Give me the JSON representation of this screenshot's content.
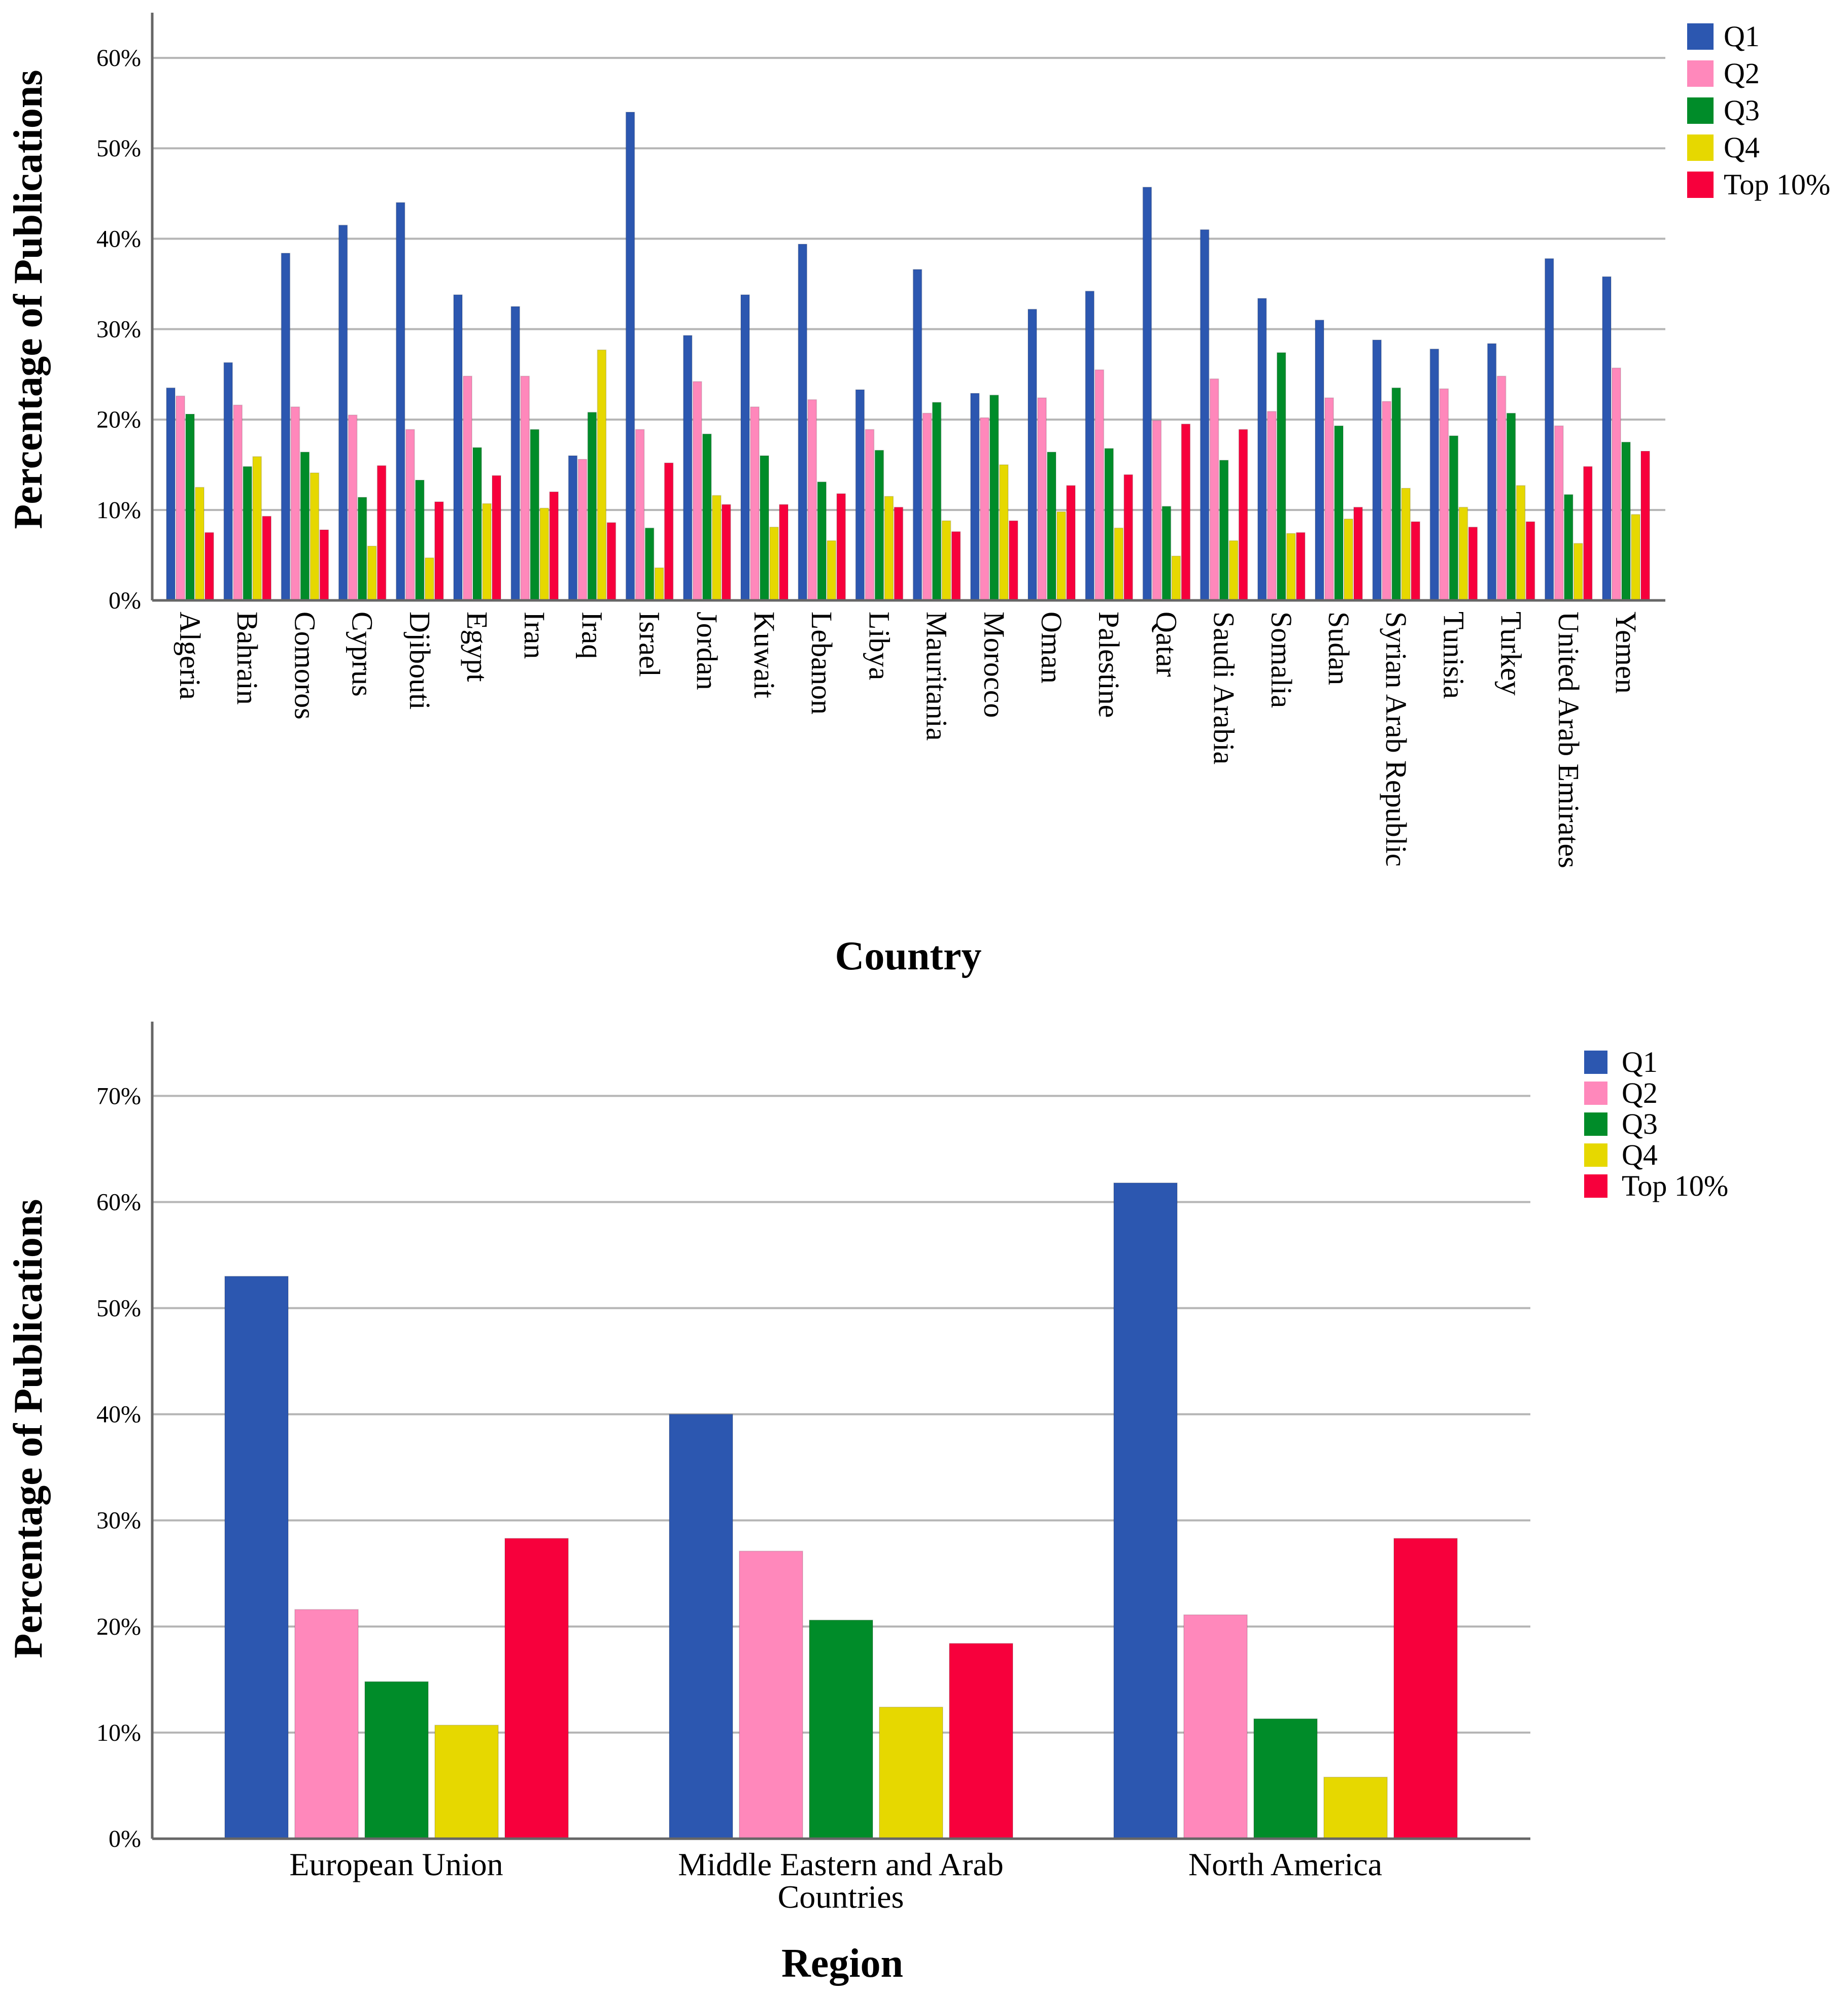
{
  "chart_data": [
    {
      "type": "bar",
      "title": "",
      "xlabel": "Country",
      "ylabel": "Percentage of Publications",
      "ylim": [
        0,
        65
      ],
      "yticks": [
        "0%",
        "10%",
        "20%",
        "30%",
        "40%",
        "50%",
        "60%"
      ],
      "legend": [
        "Q1",
        "Q2",
        "Q3",
        "Q4",
        "Top 10%"
      ],
      "legend_position": "top-right",
      "colors": [
        "#2c57b0",
        "#ff88bb",
        "#008c29",
        "#e6d800",
        "#f7003c"
      ],
      "categories": [
        "Algeria",
        "Bahrain",
        "Comoros",
        "Cyprus",
        "Djibouti",
        "Egypt",
        "Iran",
        "Iraq",
        "Israel",
        "Jordan",
        "Kuwait",
        "Lebanon",
        "Libya",
        "Mauritania",
        "Morocco",
        "Oman",
        "Palestine",
        "Qatar",
        "Saudi Arabia",
        "Somalia",
        "Sudan",
        "Syrian Arab Republic",
        "Tunisia",
        "Turkey",
        "United Arab Emirates",
        "Yemen"
      ],
      "series": [
        {
          "name": "Q1",
          "values": [
            23.5,
            26.3,
            38.4,
            41.5,
            44.0,
            33.8,
            32.5,
            16.0,
            54.0,
            29.3,
            33.8,
            39.4,
            23.3,
            36.6,
            22.9,
            32.2,
            34.2,
            45.7,
            41.0,
            33.4,
            31.0,
            28.8,
            27.8,
            28.4,
            37.8,
            35.8
          ]
        },
        {
          "name": "Q2",
          "values": [
            22.6,
            21.6,
            21.4,
            20.5,
            18.9,
            24.8,
            24.8,
            15.6,
            18.9,
            24.2,
            21.4,
            22.2,
            18.9,
            20.7,
            20.2,
            22.4,
            25.5,
            19.9,
            24.5,
            20.9,
            22.4,
            22.0,
            23.4,
            24.8,
            19.3,
            25.7
          ]
        },
        {
          "name": "Q3",
          "values": [
            20.6,
            14.8,
            16.4,
            11.4,
            13.3,
            16.9,
            18.9,
            20.8,
            8.0,
            18.4,
            16.0,
            13.1,
            16.6,
            21.9,
            22.7,
            16.4,
            16.8,
            10.4,
            15.5,
            27.4,
            19.3,
            23.5,
            18.2,
            20.7,
            11.7,
            17.5
          ]
        },
        {
          "name": "Q4",
          "values": [
            12.5,
            15.9,
            14.1,
            6.0,
            4.7,
            10.7,
            10.2,
            27.7,
            3.6,
            11.6,
            8.1,
            6.6,
            11.5,
            8.8,
            15.0,
            9.8,
            8.0,
            4.9,
            6.6,
            7.4,
            9.0,
            12.4,
            10.3,
            12.7,
            6.3,
            9.5
          ]
        },
        {
          "name": "Top 10%",
          "values": [
            7.5,
            9.3,
            7.8,
            14.9,
            10.9,
            13.8,
            12.0,
            8.6,
            15.2,
            10.6,
            10.6,
            11.8,
            10.3,
            7.6,
            8.8,
            12.7,
            13.9,
            19.5,
            18.9,
            7.5,
            10.3,
            8.7,
            8.1,
            8.7,
            14.8,
            16.5
          ]
        }
      ]
    },
    {
      "type": "bar",
      "title": "",
      "xlabel": "Region",
      "ylabel": "Percentage of Publications",
      "ylim": [
        0,
        77
      ],
      "yticks": [
        "0%",
        "10%",
        "20%",
        "30%",
        "40%",
        "50%",
        "60%",
        "70%"
      ],
      "legend": [
        "Q1",
        "Q2",
        "Q3",
        "Q4",
        "Top 10%"
      ],
      "legend_position": "top-right",
      "colors": [
        "#2c57b0",
        "#ff88bb",
        "#008c29",
        "#e6d800",
        "#f7003c"
      ],
      "categories": [
        [
          "European Union"
        ],
        [
          "Middle Eastern and Arab",
          "Countries"
        ],
        [
          "North America"
        ]
      ],
      "series": [
        {
          "name": "Q1",
          "values": [
            53.0,
            40.0,
            61.8
          ]
        },
        {
          "name": "Q2",
          "values": [
            21.6,
            27.1,
            21.1
          ]
        },
        {
          "name": "Q3",
          "values": [
            14.8,
            20.6,
            11.3
          ]
        },
        {
          "name": "Q4",
          "values": [
            10.7,
            12.4,
            5.8
          ]
        },
        {
          "name": "Top 10%",
          "values": [
            28.3,
            18.4,
            28.3
          ]
        }
      ]
    }
  ]
}
